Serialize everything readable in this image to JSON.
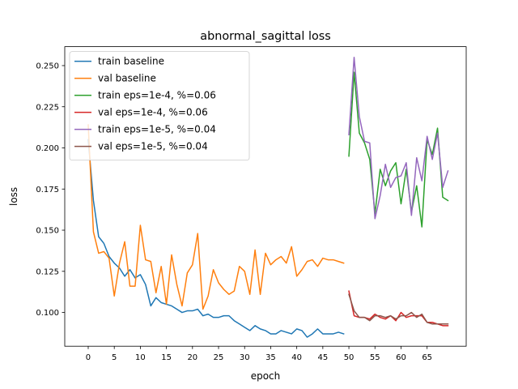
{
  "chart_data": {
    "type": "line",
    "title": "abnormal_sagittal loss",
    "xlabel": "epoch",
    "ylabel": "loss",
    "xlim": [
      -4.5,
      72.5
    ],
    "ylim": [
      0.0795,
      0.2615
    ],
    "xticks": [
      0,
      5,
      10,
      15,
      20,
      25,
      30,
      35,
      40,
      45,
      50,
      55,
      60,
      65
    ],
    "xtick_labels": [
      "0",
      "5",
      "10",
      "15",
      "20",
      "25",
      "30",
      "35",
      "40",
      "45",
      "50",
      "55",
      "60",
      "65"
    ],
    "yticks": [
      0.1,
      0.125,
      0.15,
      0.175,
      0.2,
      0.225,
      0.25
    ],
    "ytick_labels": [
      "0.100",
      "0.125",
      "0.150",
      "0.175",
      "0.200",
      "0.225",
      "0.250"
    ],
    "grid": false,
    "legend_position": "top-left",
    "series": [
      {
        "name": "train baseline",
        "color": "#1f77b4",
        "x": [
          0,
          1,
          2,
          3,
          4,
          5,
          6,
          7,
          8,
          9,
          10,
          11,
          12,
          13,
          14,
          15,
          16,
          17,
          18,
          19,
          20,
          21,
          22,
          23,
          24,
          25,
          26,
          27,
          28,
          29,
          30,
          31,
          32,
          33,
          34,
          35,
          36,
          37,
          38,
          39,
          40,
          41,
          42,
          43,
          44,
          45,
          46,
          47,
          48,
          49
        ],
        "y": [
          0.205,
          0.168,
          0.146,
          0.142,
          0.134,
          0.13,
          0.127,
          0.122,
          0.126,
          0.121,
          0.123,
          0.117,
          0.104,
          0.109,
          0.106,
          0.105,
          0.104,
          0.102,
          0.1,
          0.101,
          0.101,
          0.102,
          0.098,
          0.099,
          0.097,
          0.097,
          0.098,
          0.098,
          0.095,
          0.093,
          0.091,
          0.089,
          0.092,
          0.09,
          0.089,
          0.087,
          0.087,
          0.089,
          0.088,
          0.087,
          0.09,
          0.089,
          0.085,
          0.087,
          0.09,
          0.087,
          0.087,
          0.087,
          0.088,
          0.087
        ]
      },
      {
        "name": "val baseline",
        "color": "#ff7f0e",
        "x": [
          0,
          1,
          2,
          3,
          4,
          5,
          6,
          7,
          8,
          9,
          10,
          11,
          12,
          13,
          14,
          15,
          16,
          17,
          18,
          19,
          20,
          21,
          22,
          23,
          24,
          25,
          26,
          27,
          28,
          29,
          30,
          31,
          32,
          33,
          34,
          35,
          36,
          37,
          38,
          39,
          40,
          41,
          42,
          43,
          44,
          45,
          46,
          47,
          48,
          49
        ],
        "y": [
          0.214,
          0.149,
          0.136,
          0.137,
          0.133,
          0.11,
          0.13,
          0.143,
          0.116,
          0.116,
          0.153,
          0.132,
          0.131,
          0.112,
          0.128,
          0.105,
          0.135,
          0.117,
          0.104,
          0.124,
          0.129,
          0.148,
          0.102,
          0.11,
          0.126,
          0.118,
          0.114,
          0.111,
          0.113,
          0.128,
          0.125,
          0.111,
          0.138,
          0.111,
          0.136,
          0.129,
          0.132,
          0.134,
          0.13,
          0.14,
          0.122,
          0.126,
          0.131,
          0.132,
          0.128,
          0.133,
          0.132,
          0.132,
          0.131,
          0.13
        ]
      },
      {
        "name": "train eps=1e-4, %=0.06",
        "color": "#2ca02c",
        "x": [
          50,
          51,
          52,
          53,
          54,
          55,
          56,
          57,
          58,
          59,
          60,
          61,
          62,
          63,
          64,
          65,
          66,
          67,
          68,
          69
        ],
        "y": [
          0.195,
          0.246,
          0.209,
          0.203,
          0.193,
          0.16,
          0.187,
          0.177,
          0.186,
          0.191,
          0.166,
          0.187,
          0.161,
          0.177,
          0.152,
          0.205,
          0.196,
          0.212,
          0.17,
          0.168
        ]
      },
      {
        "name": "val eps=1e-4, %=0.06",
        "color": "#d62728",
        "x": [
          50,
          51,
          52,
          53,
          54,
          55,
          56,
          57,
          58,
          59,
          60,
          61,
          62,
          63,
          64,
          65,
          66,
          67,
          68,
          69
        ],
        "y": [
          0.113,
          0.098,
          0.097,
          0.097,
          0.096,
          0.099,
          0.097,
          0.096,
          0.098,
          0.095,
          0.1,
          0.097,
          0.098,
          0.098,
          0.098,
          0.094,
          0.094,
          0.093,
          0.092,
          0.092
        ]
      },
      {
        "name": "train eps=1e-5, %=0.04",
        "color": "#9467bd",
        "x": [
          50,
          51,
          52,
          53,
          54,
          55,
          56,
          57,
          58,
          59,
          60,
          61,
          62,
          63,
          64,
          65,
          66,
          67,
          68,
          69
        ],
        "y": [
          0.208,
          0.255,
          0.219,
          0.204,
          0.203,
          0.157,
          0.171,
          0.19,
          0.176,
          0.182,
          0.183,
          0.191,
          0.159,
          0.194,
          0.18,
          0.207,
          0.193,
          0.209,
          0.176,
          0.186
        ]
      },
      {
        "name": "val eps=1e-5, %=0.04",
        "color": "#8c564b",
        "x": [
          50,
          51,
          52,
          53,
          54,
          55,
          56,
          57,
          58,
          59,
          60,
          61,
          62,
          63,
          64,
          65,
          66,
          67,
          68,
          69
        ],
        "y": [
          0.111,
          0.101,
          0.097,
          0.097,
          0.095,
          0.098,
          0.098,
          0.097,
          0.098,
          0.096,
          0.098,
          0.098,
          0.1,
          0.097,
          0.099,
          0.094,
          0.093,
          0.093,
          0.093,
          0.093
        ]
      }
    ]
  }
}
